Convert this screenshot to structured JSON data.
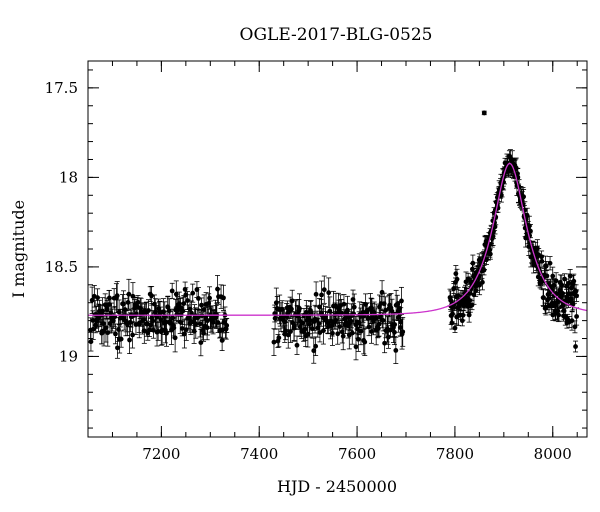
{
  "chart_data": {
    "type": "scatter",
    "title": "OGLE-2017-BLG-0525",
    "xlabel": "HJD - 2450000",
    "ylabel": "I magnitude",
    "xlim": [
      7050,
      8070
    ],
    "ylim": [
      19.45,
      17.35
    ],
    "y_inverted": true,
    "grid": false,
    "x_major_ticks": [
      7200,
      7400,
      7600,
      7800,
      8000
    ],
    "x_minor_step": 50,
    "y_major_ticks": [
      17.5,
      18,
      18.5,
      19
    ],
    "y_major_tick_labels": [
      "17.5",
      "18",
      "18.5",
      "19"
    ],
    "y_minor_step": 0.1,
    "x_tick_labels": [
      "7200",
      "7400",
      "7600",
      "7800",
      "8000"
    ],
    "model": {
      "type": "microlensing-fit-curve",
      "color": "#cc33cc",
      "t0": 7912,
      "tE": 60,
      "u0": 0.5,
      "baseline": 18.77
    },
    "series": [
      {
        "marker": "filled-circle-with-errorbar",
        "color": "#000000",
        "segments": [
          {
            "x_start": 7055,
            "x_end": 7335,
            "step": 1.5,
            "baseline": 18.78,
            "scatter": 0.07,
            "err": 0.06
          },
          {
            "x_start": 7430,
            "x_end": 7695,
            "step": 1.5,
            "baseline": 18.8,
            "scatter": 0.07,
            "err": 0.06
          },
          {
            "x_start": 7790,
            "x_end": 8050,
            "step": 0.9,
            "follow_model": true,
            "scatter": 0.025,
            "err": 0.04
          }
        ],
        "extra_points": [
          {
            "x": 7860,
            "y": 17.64,
            "err": 0.01
          }
        ]
      }
    ]
  }
}
